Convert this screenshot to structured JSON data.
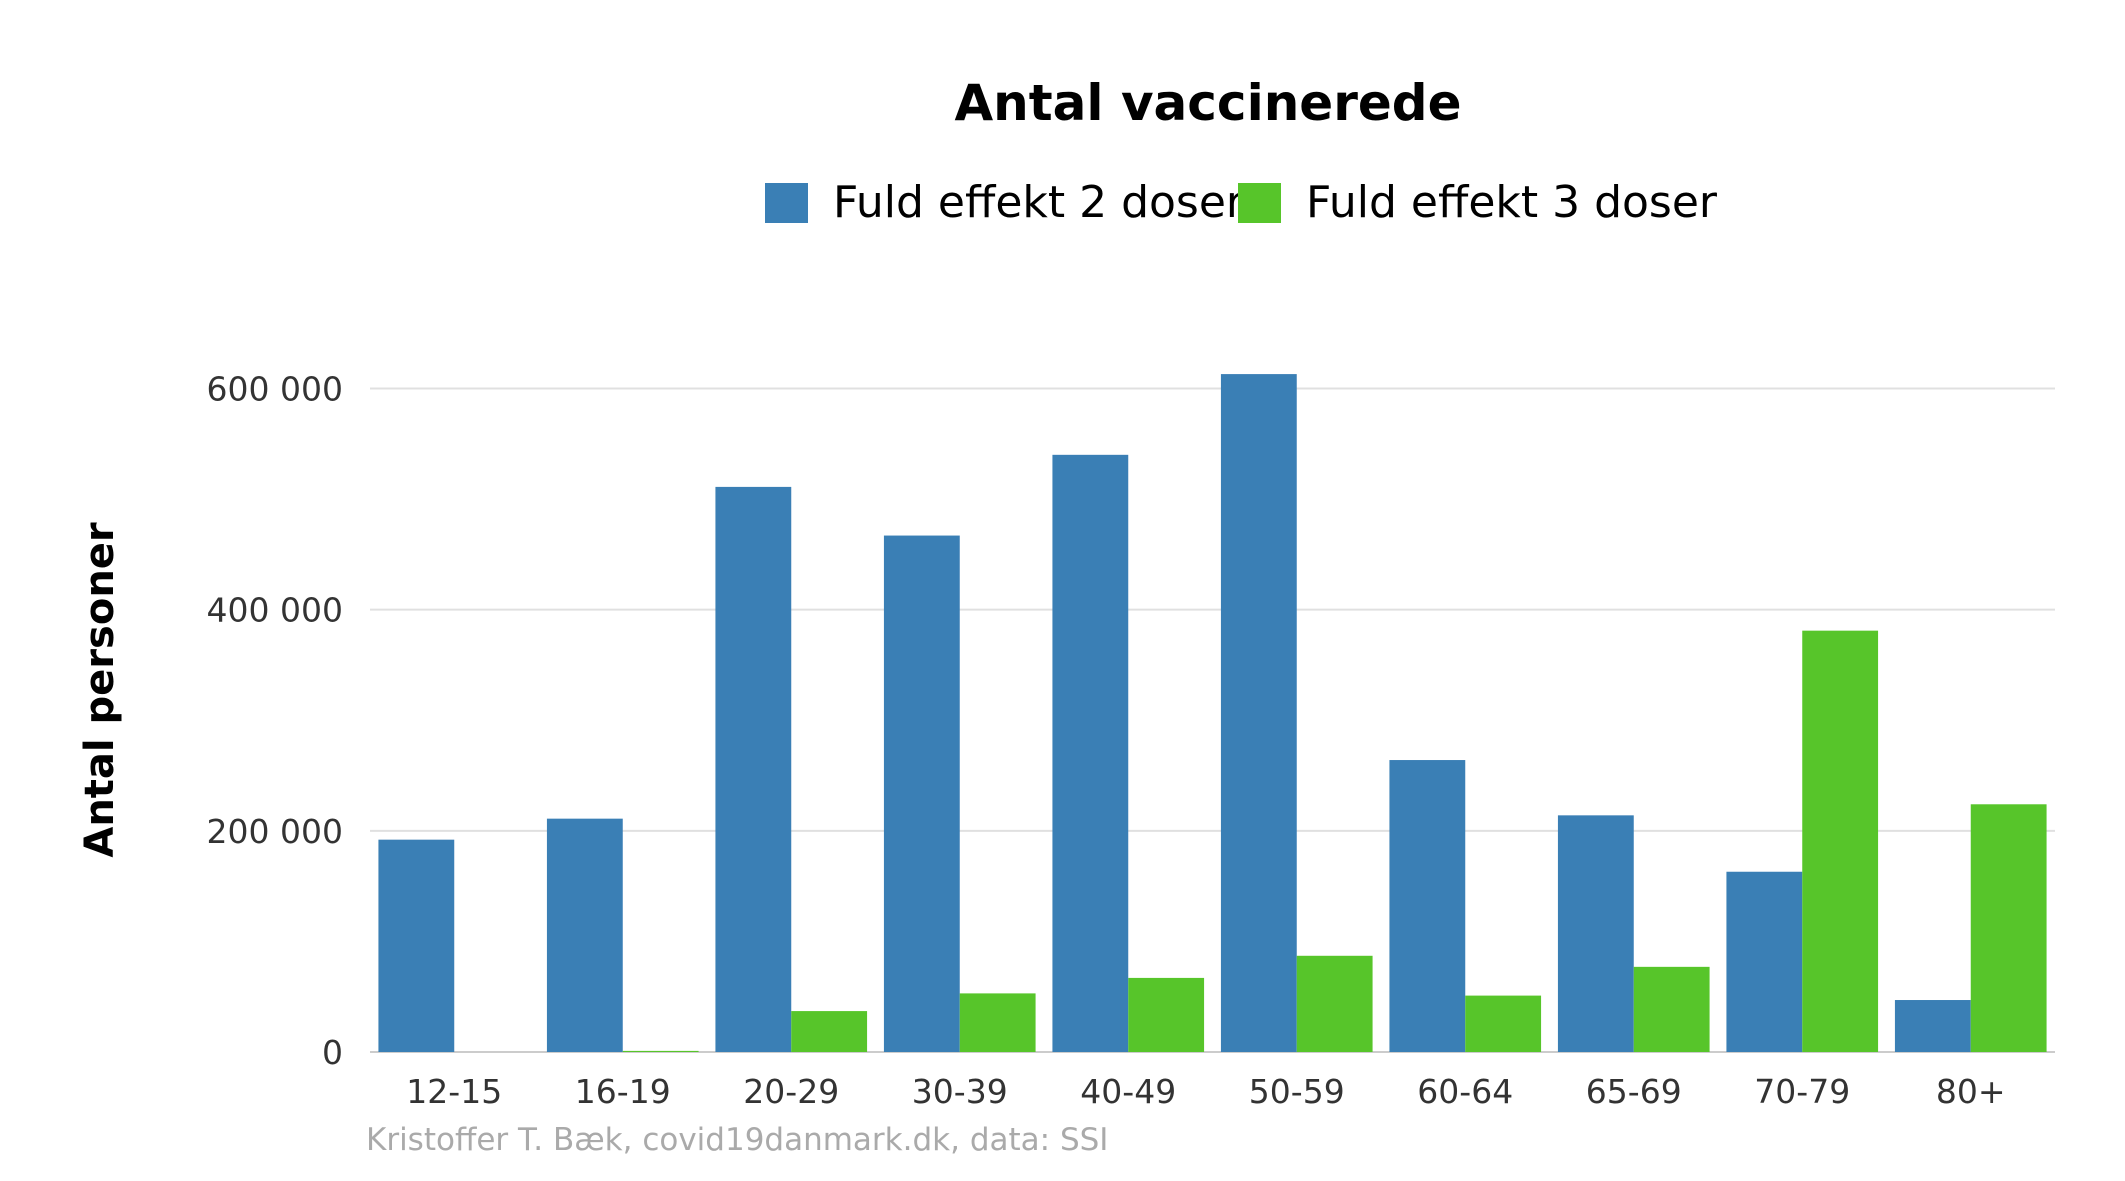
{
  "chart_data": {
    "type": "bar",
    "title": "Antal vaccinerede",
    "ylabel": "Antal personer",
    "xlabel": "",
    "caption": "Kristoffer T. Bæk, covid19danmark.dk, data: SSI",
    "categories": [
      "12-15",
      "16-19",
      "20-29",
      "30-39",
      "40-49",
      "50-59",
      "60-64",
      "65-69",
      "70-79",
      "80+"
    ],
    "series": [
      {
        "name": "Fuld effekt 2 doser",
        "color": "#3a7fb5",
        "values": [
          192000,
          211000,
          511000,
          467000,
          540000,
          613000,
          264000,
          214000,
          163000,
          47000
        ]
      },
      {
        "name": "Fuld effekt 3 doser",
        "color": "#57c52a",
        "values": [
          0,
          1000,
          37000,
          53000,
          67000,
          87000,
          51000,
          77000,
          381000,
          224000
        ]
      }
    ],
    "ylim": [
      0,
      680000
    ],
    "yticks": [
      0,
      200000,
      400000,
      600000
    ],
    "ytick_labels": [
      "0",
      "200 000",
      "400 000",
      "600 000"
    ],
    "grid": true,
    "legend_position": "top"
  }
}
